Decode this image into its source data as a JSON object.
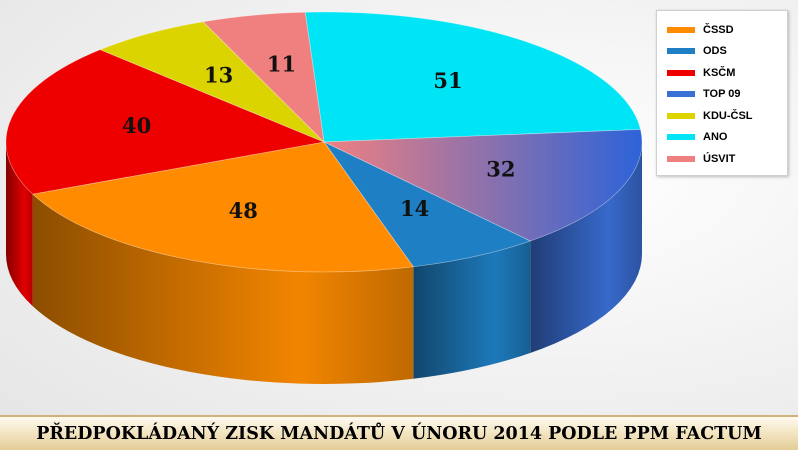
{
  "chart_data": {
    "type": "pie",
    "title": "PŘEDPOKLÁDANÝ ZISK MANDÁTŮ V ÚNORU 2014 PODLE PPM FACTUM",
    "legend_position": "top-right",
    "slices": [
      {
        "name": "ČSSD",
        "value": 48,
        "color": "#ff8c00"
      },
      {
        "name": "ODS",
        "value": 14,
        "color": "#1f7fc4"
      },
      {
        "name": "KSČM",
        "value": 40,
        "color": "#ee0000"
      },
      {
        "name": "TOP 09",
        "value": 32,
        "color": "#3a6fd6"
      },
      {
        "name": "KDU-ČSL",
        "value": 13,
        "color": "#dcd400"
      },
      {
        "name": "ANO",
        "value": 51,
        "color": "#00e5f5"
      },
      {
        "name": "ÚSVIT",
        "value": 11,
        "color": "#f08080"
      }
    ]
  }
}
